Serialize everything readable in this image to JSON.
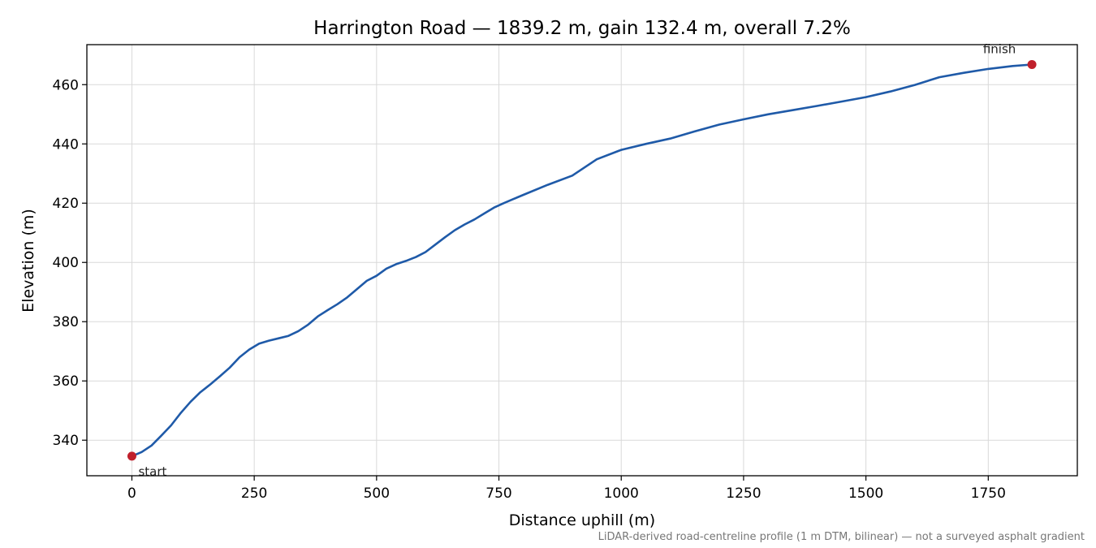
{
  "chart_data": {
    "type": "line",
    "title": "Harrington Road — 1839.2 m, gain 132.4 m, overall 7.2%",
    "xlabel": "Distance uphill (m)",
    "ylabel": "Elevation (m)",
    "footnote": "LiDAR-derived road-centreline profile (1 m DTM, bilinear) — not a surveyed asphalt gradient",
    "xlim": [
      -92,
      1932
    ],
    "ylim": [
      328,
      473.5
    ],
    "xticks": [
      0,
      250,
      500,
      750,
      1000,
      1250,
      1500,
      1750
    ],
    "yticks": [
      340,
      360,
      380,
      400,
      420,
      440,
      460
    ],
    "grid": true,
    "line_color": "#1f5aa8",
    "marker_color": "#c0202c",
    "series": [
      {
        "x": [
          0,
          20,
          40,
          60,
          80,
          100,
          120,
          140,
          160,
          180,
          200,
          220,
          240,
          260,
          280,
          300,
          320,
          340,
          360,
          380,
          400,
          420,
          440,
          460,
          480,
          500,
          520,
          540,
          560,
          580,
          600,
          620,
          640,
          660,
          680,
          700,
          720,
          740,
          760,
          780,
          800,
          850,
          900,
          950,
          1000,
          1050,
          1100,
          1150,
          1200,
          1250,
          1300,
          1350,
          1400,
          1450,
          1500,
          1550,
          1600,
          1650,
          1700,
          1750,
          1800,
          1839.2
        ],
        "y": [
          334.6,
          336.0,
          338.2,
          341.5,
          345.0,
          349.2,
          353.0,
          356.2,
          358.8,
          361.6,
          364.5,
          368.0,
          370.6,
          372.6,
          373.6,
          374.4,
          375.2,
          376.8,
          379.0,
          381.8,
          383.9,
          385.9,
          388.2,
          391.0,
          393.8,
          395.5,
          397.9,
          399.4,
          400.5,
          401.8,
          403.5,
          406.0,
          408.5,
          410.9,
          412.8,
          414.5,
          416.5,
          418.5,
          420.0,
          421.4,
          422.8,
          426.2,
          429.3,
          434.8,
          438.0,
          440.0,
          441.8,
          444.2,
          446.5,
          448.3,
          450.0,
          451.4,
          452.8,
          454.3,
          455.8,
          457.7,
          459.9,
          462.5,
          464.0,
          465.3,
          466.3,
          466.8
        ]
      }
    ],
    "annotations": [
      {
        "label": "start",
        "x": 0,
        "y": 334.6
      },
      {
        "label": "finish",
        "x": 1839.2,
        "y": 466.8
      }
    ]
  }
}
